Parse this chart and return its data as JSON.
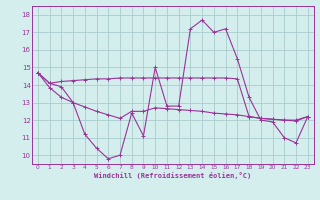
{
  "xlabel": "Windchill (Refroidissement éolien,°C)",
  "x_values": [
    0,
    1,
    2,
    3,
    4,
    5,
    6,
    7,
    8,
    9,
    10,
    11,
    12,
    13,
    14,
    15,
    16,
    17,
    18,
    19,
    20,
    21,
    22,
    23
  ],
  "line1_y": [
    14.7,
    14.1,
    13.9,
    13.0,
    11.2,
    10.4,
    9.8,
    10.0,
    12.4,
    11.1,
    15.0,
    12.8,
    12.8,
    17.2,
    17.7,
    17.0,
    17.2,
    15.5,
    13.3,
    12.0,
    11.9,
    11.0,
    10.7,
    12.2
  ],
  "line2_y": [
    14.7,
    14.1,
    14.2,
    14.25,
    14.3,
    14.35,
    14.35,
    14.4,
    14.4,
    14.4,
    14.4,
    14.4,
    14.4,
    14.4,
    14.4,
    14.4,
    14.4,
    14.35,
    12.2,
    12.1,
    12.05,
    12.0,
    12.0,
    12.2
  ],
  "line3_y": [
    14.7,
    13.85,
    13.3,
    13.0,
    12.75,
    12.5,
    12.3,
    12.1,
    12.5,
    12.5,
    12.7,
    12.65,
    12.6,
    12.55,
    12.5,
    12.4,
    12.35,
    12.3,
    12.2,
    12.1,
    12.05,
    12.0,
    11.95,
    12.2
  ],
  "line_color": "#993399",
  "bg_color": "#d4eeee",
  "grid_color": "#aacccc",
  "ylim": [
    9.5,
    18.5
  ],
  "xlim": [
    -0.5,
    23.5
  ],
  "yticks": [
    10,
    11,
    12,
    13,
    14,
    15,
    16,
    17,
    18
  ],
  "xticks": [
    0,
    1,
    2,
    3,
    4,
    5,
    6,
    7,
    8,
    9,
    10,
    11,
    12,
    13,
    14,
    15,
    16,
    17,
    18,
    19,
    20,
    21,
    22,
    23
  ]
}
